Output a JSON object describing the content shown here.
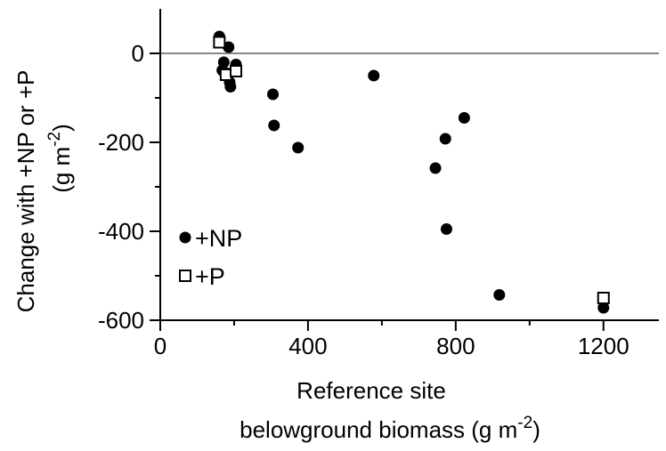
{
  "chart_data": {
    "type": "scatter",
    "title": "",
    "xlabel": {
      "line1": "Reference site",
      "line2_prefix": "belowground biomass (g m",
      "line2_sup": "-2",
      "line2_suffix": ")"
    },
    "ylabel": {
      "line1": "Change with +NP or +P",
      "line2_prefix": "(g m",
      "line2_sup": "-2",
      "line2_suffix": ")"
    },
    "xlim": [
      0,
      1350
    ],
    "ylim": [
      -600,
      100
    ],
    "x_ticks": [
      0,
      400,
      800,
      1200
    ],
    "x_tick_labels": [
      "0",
      "400",
      "800",
      "1200"
    ],
    "x_minor_ticks": [
      200,
      600,
      1000
    ],
    "y_ticks": [
      0,
      -200,
      -400,
      -600
    ],
    "y_tick_labels": [
      "0",
      "-200",
      "-400",
      "-600"
    ],
    "y_minor_ticks": [
      -100,
      -300,
      -500
    ],
    "zero_line": true,
    "grid": false,
    "legend_position": "lower-left",
    "series": [
      {
        "name": "+NP",
        "marker": "filled-circle",
        "color": "#000000",
        "points": [
          [
            160,
            38
          ],
          [
            185,
            14
          ],
          [
            172,
            -20
          ],
          [
            168,
            -38
          ],
          [
            182,
            -45
          ],
          [
            205,
            -25
          ],
          [
            188,
            -65
          ],
          [
            190,
            -75
          ],
          [
            305,
            -92
          ],
          [
            308,
            -162
          ],
          [
            373,
            -212
          ],
          [
            578,
            -50
          ],
          [
            745,
            -258
          ],
          [
            772,
            -192
          ],
          [
            823,
            -145
          ],
          [
            775,
            -395
          ],
          [
            918,
            -543
          ],
          [
            1200,
            -572
          ]
        ]
      },
      {
        "name": "+P",
        "marker": "open-square",
        "color": "#000000",
        "points": [
          [
            160,
            25
          ],
          [
            178,
            -48
          ],
          [
            205,
            -40
          ],
          [
            1200,
            -550
          ]
        ]
      }
    ]
  }
}
